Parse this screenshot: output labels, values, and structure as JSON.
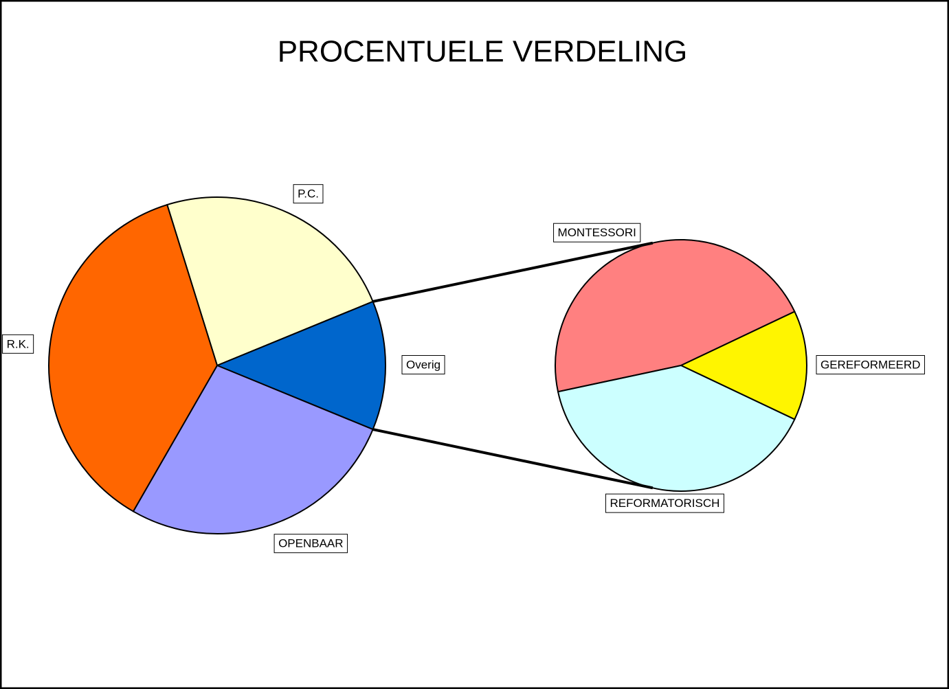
{
  "title": "PROCENTUELE VERDELING",
  "chart_data": [
    {
      "type": "pie",
      "categories": [
        "P.C.",
        "Overig",
        "OPENBAAR",
        "R.K."
      ],
      "values": [
        23.6,
        12.4,
        27.1,
        36.9
      ],
      "colors": [
        "#ffffcc",
        "#0066cc",
        "#9999ff",
        "#ff6600"
      ]
    },
    {
      "type": "pie",
      "categories": [
        "MONTESSORI",
        "GEREFORMEERD",
        "REFORMATORISCH"
      ],
      "values": [
        46.3,
        14.1,
        39.6
      ],
      "colors": [
        "#ff8080",
        "#fff500",
        "#ccffff"
      ]
    }
  ]
}
